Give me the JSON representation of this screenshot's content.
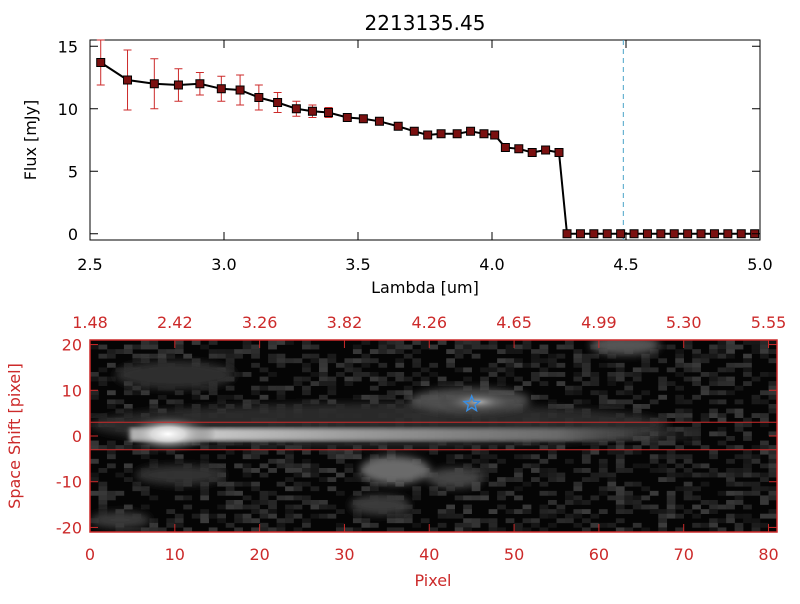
{
  "chart_data": [
    {
      "type": "line",
      "title": "2213135.45",
      "xlabel": "Lambda [um]",
      "ylabel": "Flux [mJy]",
      "xlim": [
        2.5,
        5.0
      ],
      "ylim": [
        -0.5,
        15.5
      ],
      "xticks": [
        "2.5",
        "3.0",
        "3.5",
        "4.0",
        "4.5",
        "5.0"
      ],
      "yticks": [
        "0",
        "5",
        "10",
        "15"
      ],
      "reference_line_x": 4.49,
      "series": [
        {
          "x": [
            2.54,
            2.64,
            2.74,
            2.83,
            2.91,
            2.99,
            3.06,
            3.13,
            3.2,
            3.27,
            3.33,
            3.39,
            3.46,
            3.52,
            3.58,
            3.65,
            3.71,
            3.76,
            3.81,
            3.87,
            3.92,
            3.97,
            4.01,
            4.05,
            4.1,
            4.15,
            4.2,
            4.25
          ],
          "y": [
            13.7,
            12.3,
            12.0,
            11.9,
            12.0,
            11.6,
            11.5,
            10.9,
            10.5,
            10.0,
            9.8,
            9.7,
            9.3,
            9.2,
            9.0,
            8.6,
            8.2,
            7.9,
            8.0,
            8.0,
            8.2,
            8.0,
            7.9,
            6.9,
            6.8,
            6.5,
            6.7,
            6.5
          ],
          "err": [
            1.8,
            2.4,
            2.0,
            1.3,
            0.9,
            1.0,
            1.2,
            1.0,
            0.8,
            0.6,
            0.5,
            0.4,
            0.3,
            0.3,
            0.3,
            0.3,
            0.3,
            0.3,
            0.2,
            0.2,
            0.2,
            0.2,
            0.2,
            0.2,
            0.2,
            0.2,
            0.2,
            0.2
          ]
        },
        {
          "x": [
            4.28,
            4.33,
            4.38,
            4.43,
            4.48,
            4.53,
            4.58,
            4.63,
            4.68,
            4.73,
            4.78,
            4.83,
            4.88,
            4.93,
            4.98
          ],
          "y": [
            0,
            0,
            0,
            0,
            0,
            0,
            0,
            0,
            0,
            0,
            0,
            0,
            0,
            0,
            0
          ]
        }
      ]
    },
    {
      "type": "heatmap",
      "xlabel": "Pixel",
      "ylabel": "Space Shift [pixel]",
      "xlim": [
        0,
        81
      ],
      "ylim": [
        -21,
        21
      ],
      "xticks": [
        "0",
        "10",
        "20",
        "30",
        "40",
        "50",
        "60",
        "70",
        "80"
      ],
      "yticks": [
        "-20",
        "-10",
        "0",
        "10",
        "20"
      ],
      "top_xticks": [
        "1.48",
        "2.42",
        "3.26",
        "3.82",
        "4.26",
        "4.65",
        "4.99",
        "5.30",
        "5.55"
      ],
      "aperture_y": [
        -3,
        3
      ],
      "star_marker": {
        "x": 45,
        "y": 7
      },
      "colors": {
        "accent": "#cc2a2a",
        "marker": "#3a8de0"
      }
    }
  ]
}
